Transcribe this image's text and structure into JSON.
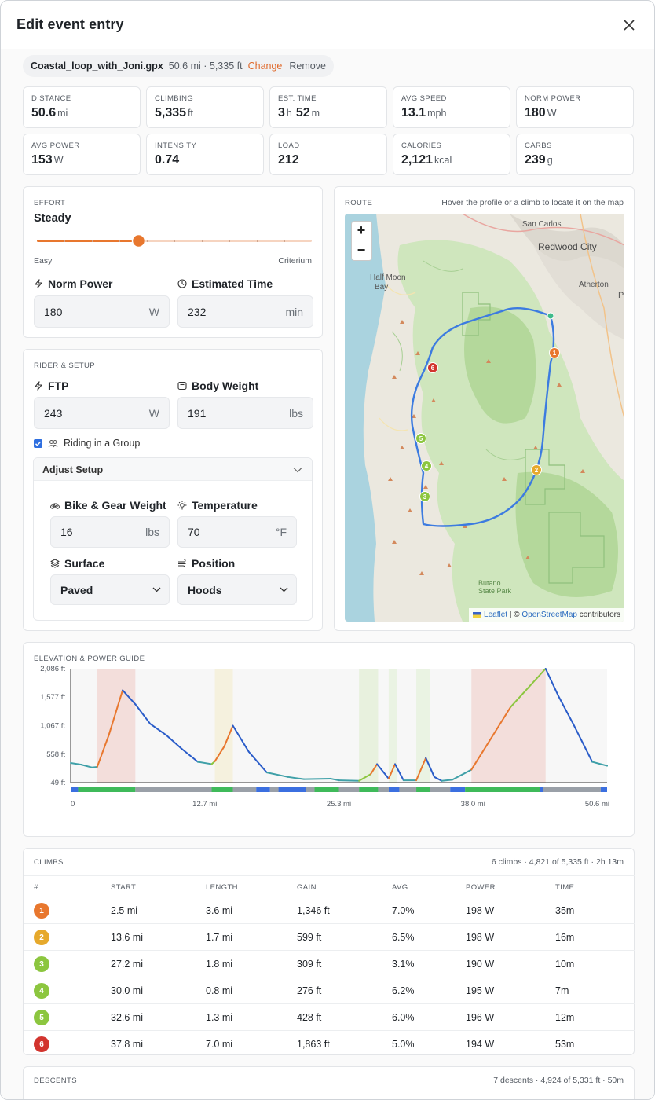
{
  "modal": {
    "title": "Edit event entry"
  },
  "file": {
    "name": "Coastal_loop_with_Joni.gpx",
    "meta": "50.6 mi · 5,335 ft",
    "change": "Change",
    "remove": "Remove"
  },
  "stats": [
    {
      "label": "DISTANCE",
      "value": "50.6",
      "unit": "mi"
    },
    {
      "label": "CLIMBING",
      "value": "5,335",
      "unit": "ft"
    },
    {
      "label": "EST. TIME",
      "value": "3",
      "unit": "h",
      "value2": "52",
      "unit2": "m"
    },
    {
      "label": "AVG SPEED",
      "value": "13.1",
      "unit": "mph"
    },
    {
      "label": "NORM POWER",
      "value": "180",
      "unit": "W"
    },
    {
      "label": "AVG POWER",
      "value": "153",
      "unit": "W"
    },
    {
      "label": "INTENSITY",
      "value": "0.74",
      "unit": ""
    },
    {
      "label": "LOAD",
      "value": "212",
      "unit": ""
    },
    {
      "label": "CALORIES",
      "value": "2,121",
      "unit": "kcal"
    },
    {
      "label": "CARBS",
      "value": "239",
      "unit": "g"
    }
  ],
  "effort": {
    "section": "EFFORT",
    "level": "Steady",
    "min_label": "Easy",
    "max_label": "Criterium",
    "slider_fraction": 0.37,
    "slider_steps": 10,
    "norm_power": {
      "label": "Norm Power",
      "value": "180",
      "unit": "W"
    },
    "est_time": {
      "label": "Estimated Time",
      "value": "232",
      "unit": "min"
    }
  },
  "rider": {
    "section": "RIDER & SETUP",
    "ftp": {
      "label": "FTP",
      "value": "243",
      "unit": "W"
    },
    "weight": {
      "label": "Body Weight",
      "value": "191",
      "unit": "lbs"
    },
    "group_label": "Riding in a Group",
    "group_checked": true,
    "adjust_label": "Adjust Setup",
    "bike": {
      "label": "Bike & Gear Weight",
      "value": "16",
      "unit": "lbs"
    },
    "temp": {
      "label": "Temperature",
      "value": "70",
      "unit": "°F"
    },
    "surface": {
      "label": "Surface",
      "value": "Paved"
    },
    "position": {
      "label": "Position",
      "value": "Hoods"
    }
  },
  "route": {
    "section": "ROUTE",
    "hint": "Hover the profile or a climb to locate it on the map",
    "zoom_in": "+",
    "zoom_out": "−",
    "attribution_leaflet": "Leaflet",
    "attribution_sep": " | © ",
    "attribution_osm": "OpenStreetMap",
    "attribution_tail": " contributors",
    "places": [
      "San Carlos",
      "Redwood City",
      "Atherton",
      "Half Moon",
      "Bay",
      "Butano",
      "State Park",
      "P"
    ]
  },
  "elevation": {
    "section": "ELEVATION & POWER GUIDE",
    "y_ticks": [
      "2,086 ft",
      "1,577 ft",
      "1,067 ft",
      "558 ft",
      "49 ft"
    ],
    "x_ticks": [
      "0",
      "12.7 mi",
      "25.3 mi",
      "38.0 mi",
      "50.6 mi"
    ]
  },
  "chart_data": {
    "type": "line",
    "title": "",
    "xlabel": "",
    "ylabel": "",
    "x_unit": "mi",
    "y_unit": "ft",
    "xlim": [
      0,
      50.6
    ],
    "ylim": [
      49,
      2086
    ],
    "x": [
      0,
      1.0,
      2.0,
      2.5,
      3.6,
      4.9,
      6.1,
      7.5,
      9.0,
      10.5,
      12.0,
      13.3,
      13.6,
      14.5,
      15.3,
      16.8,
      18.5,
      20.5,
      22.0,
      24.5,
      25.3,
      27.2,
      28.3,
      28.9,
      30.0,
      30.6,
      31.4,
      32.6,
      33.5,
      34.3,
      35.0,
      36.0,
      37.8,
      41.5,
      44.8,
      46.0,
      47.4,
      49.2,
      50.6
    ],
    "series": [
      {
        "values": [
          400,
          370,
          320,
          330,
          900,
          1700,
          1450,
          1100,
          900,
          650,
          420,
          380,
          430,
          700,
          1067,
          600,
          230,
          150,
          110,
          120,
          90,
          80,
          200,
          380,
          120,
          380,
          90,
          90,
          490,
          150,
          80,
          100,
          280,
          1400,
          2086,
          1600,
          1100,
          420,
          350
        ]
      }
    ],
    "climb_bands": [
      {
        "start": 2.5,
        "end": 6.1,
        "color": "#f2d6d2"
      },
      {
        "start": 13.6,
        "end": 15.3,
        "color": "#f4efd6"
      },
      {
        "start": 27.2,
        "end": 29.0,
        "color": "#e3efd6"
      },
      {
        "start": 30.0,
        "end": 30.8,
        "color": "#e6f2dc"
      },
      {
        "start": 32.6,
        "end": 33.9,
        "color": "#e6f2dc"
      },
      {
        "start": 37.8,
        "end": 44.8,
        "color": "#f2d6d2"
      }
    ],
    "surface_strip": [
      {
        "start": 0,
        "end": 0.7,
        "color": "#3b6fe0"
      },
      {
        "start": 0.7,
        "end": 6.1,
        "color": "#3fba5a"
      },
      {
        "start": 6.1,
        "end": 13.3,
        "color": "#9aa0a8"
      },
      {
        "start": 13.3,
        "end": 15.3,
        "color": "#3fba5a"
      },
      {
        "start": 15.3,
        "end": 17.5,
        "color": "#9aa0a8"
      },
      {
        "start": 17.5,
        "end": 18.8,
        "color": "#3b6fe0"
      },
      {
        "start": 18.8,
        "end": 19.6,
        "color": "#9aa0a8"
      },
      {
        "start": 19.6,
        "end": 22.2,
        "color": "#3b6fe0"
      },
      {
        "start": 22.2,
        "end": 23.0,
        "color": "#9aa0a8"
      },
      {
        "start": 23.0,
        "end": 25.3,
        "color": "#3fba5a"
      },
      {
        "start": 25.3,
        "end": 27.2,
        "color": "#9aa0a8"
      },
      {
        "start": 27.2,
        "end": 29.0,
        "color": "#3fba5a"
      },
      {
        "start": 29.0,
        "end": 30.0,
        "color": "#9aa0a8"
      },
      {
        "start": 30.0,
        "end": 31.0,
        "color": "#3b6fe0"
      },
      {
        "start": 31.0,
        "end": 32.6,
        "color": "#9aa0a8"
      },
      {
        "start": 32.6,
        "end": 33.9,
        "color": "#3fba5a"
      },
      {
        "start": 33.9,
        "end": 35.8,
        "color": "#9aa0a8"
      },
      {
        "start": 35.8,
        "end": 37.2,
        "color": "#3b6fe0"
      },
      {
        "start": 37.2,
        "end": 44.3,
        "color": "#3fba5a"
      },
      {
        "start": 44.3,
        "end": 44.6,
        "color": "#3b6fe0"
      },
      {
        "start": 44.6,
        "end": 50.0,
        "color": "#9aa0a8"
      },
      {
        "start": 50.0,
        "end": 50.6,
        "color": "#3b6fe0"
      }
    ]
  },
  "climbs": {
    "section": "CLIMBS",
    "summary": "6 climbs · 4,821 of 5,335 ft · 2h 13m",
    "headers": [
      "#",
      "START",
      "LENGTH",
      "GAIN",
      "AVG",
      "POWER",
      "TIME"
    ],
    "rows": [
      {
        "n": "1",
        "color": "#e8772e",
        "start": "2.5 mi",
        "length": "3.6 mi",
        "gain": "1,346 ft",
        "avg": "7.0%",
        "power": "198 W",
        "time": "35m"
      },
      {
        "n": "2",
        "color": "#e6a92c",
        "start": "13.6 mi",
        "length": "1.7 mi",
        "gain": "599 ft",
        "avg": "6.5%",
        "power": "198 W",
        "time": "16m"
      },
      {
        "n": "3",
        "color": "#8cc63f",
        "start": "27.2 mi",
        "length": "1.8 mi",
        "gain": "309 ft",
        "avg": "3.1%",
        "power": "190 W",
        "time": "10m"
      },
      {
        "n": "4",
        "color": "#8cc63f",
        "start": "30.0 mi",
        "length": "0.8 mi",
        "gain": "276 ft",
        "avg": "6.2%",
        "power": "195 W",
        "time": "7m"
      },
      {
        "n": "5",
        "color": "#8cc63f",
        "start": "32.6 mi",
        "length": "1.3 mi",
        "gain": "428 ft",
        "avg": "6.0%",
        "power": "196 W",
        "time": "12m"
      },
      {
        "n": "6",
        "color": "#d2342e",
        "start": "37.8 mi",
        "length": "7.0 mi",
        "gain": "1,863 ft",
        "avg": "5.0%",
        "power": "194 W",
        "time": "53m"
      }
    ]
  },
  "descents": {
    "section": "DESCENTS",
    "summary": "7 descents · 4,924 of 5,331 ft · 50m"
  }
}
